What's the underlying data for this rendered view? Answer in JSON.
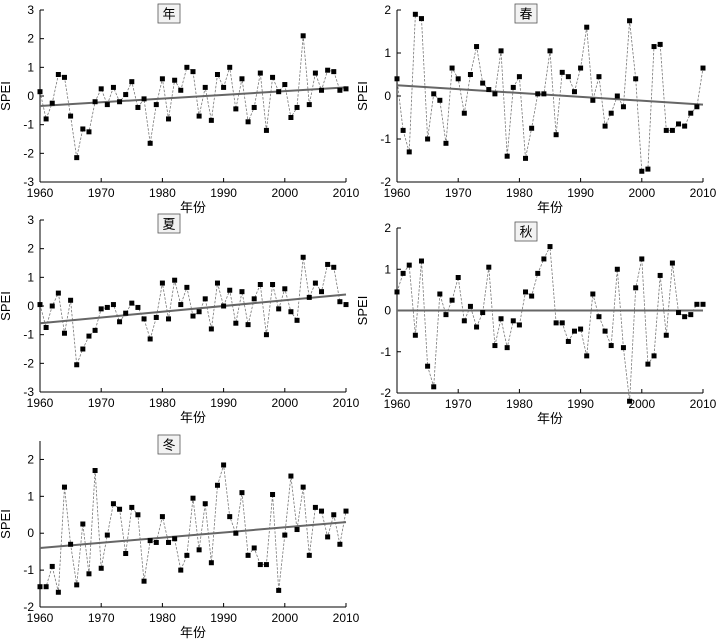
{
  "chart_data": [
    {
      "id": "annual",
      "type": "line",
      "title": "年",
      "xlabel": "年份",
      "ylabel": "SPEI",
      "xlim": [
        1960,
        2010
      ],
      "ylim": [
        -3,
        3
      ],
      "xticks": [
        1960,
        1970,
        1980,
        1990,
        2000,
        2010
      ],
      "yticks": [
        -3,
        -2,
        -1,
        0,
        1,
        2,
        3
      ],
      "x": [
        1960,
        1961,
        1962,
        1963,
        1964,
        1965,
        1966,
        1967,
        1968,
        1969,
        1970,
        1971,
        1972,
        1973,
        1974,
        1975,
        1976,
        1977,
        1978,
        1979,
        1980,
        1981,
        1982,
        1983,
        1984,
        1985,
        1986,
        1987,
        1988,
        1989,
        1990,
        1991,
        1992,
        1993,
        1994,
        1995,
        1996,
        1997,
        1998,
        1999,
        2000,
        2001,
        2002,
        2003,
        2004,
        2005,
        2006,
        2007,
        2008,
        2009,
        2010
      ],
      "values": [
        0.15,
        -0.8,
        -0.25,
        0.75,
        0.65,
        -0.7,
        -2.15,
        -1.15,
        -1.25,
        -0.2,
        0.25,
        -0.3,
        0.3,
        -0.2,
        0.05,
        0.5,
        -0.4,
        -0.1,
        -1.65,
        -0.3,
        0.6,
        -0.8,
        0.55,
        0.2,
        1.0,
        0.85,
        -0.7,
        0.3,
        -0.85,
        0.75,
        0.3,
        1.0,
        -0.45,
        0.6,
        -0.9,
        -0.4,
        0.8,
        -1.2,
        0.65,
        0.15,
        0.4,
        -0.75,
        -0.4,
        2.1,
        -0.3,
        0.8,
        0.2,
        0.9,
        0.85,
        0.2,
        0.25
      ],
      "trend": [
        -0.35,
        0.3
      ]
    },
    {
      "id": "spring",
      "type": "line",
      "title": "春",
      "xlabel": "年份",
      "ylabel": "SPEI",
      "xlim": [
        1960,
        2010
      ],
      "ylim": [
        -2,
        2
      ],
      "xticks": [
        1960,
        1970,
        1980,
        1990,
        2000,
        2010
      ],
      "yticks": [
        -2,
        -1,
        0,
        1,
        2
      ],
      "x": [
        1960,
        1961,
        1962,
        1963,
        1964,
        1965,
        1966,
        1967,
        1968,
        1969,
        1970,
        1971,
        1972,
        1973,
        1974,
        1975,
        1976,
        1977,
        1978,
        1979,
        1980,
        1981,
        1982,
        1983,
        1984,
        1985,
        1986,
        1987,
        1988,
        1989,
        1990,
        1991,
        1992,
        1993,
        1994,
        1995,
        1996,
        1997,
        1998,
        1999,
        2000,
        2001,
        2002,
        2003,
        2004,
        2005,
        2006,
        2007,
        2008,
        2009,
        2010
      ],
      "values": [
        0.4,
        -0.8,
        -1.3,
        1.9,
        1.8,
        -1.0,
        0.05,
        -0.1,
        -1.1,
        0.65,
        0.4,
        -0.4,
        0.5,
        1.15,
        0.3,
        0.15,
        0.05,
        1.05,
        -1.4,
        0.2,
        0.45,
        -1.45,
        -0.75,
        0.05,
        0.05,
        1.05,
        -0.9,
        0.55,
        0.45,
        0.1,
        0.65,
        1.6,
        -0.1,
        0.45,
        -0.7,
        -0.4,
        0.0,
        -0.25,
        1.75,
        0.4,
        -1.75,
        -1.7,
        1.15,
        1.2,
        -0.8,
        -0.8,
        -0.65,
        -0.7,
        -0.4,
        -0.25,
        0.65
      ],
      "trend": [
        0.25,
        -0.2
      ]
    },
    {
      "id": "summer",
      "type": "line",
      "title": "夏",
      "xlabel": "年份",
      "ylabel": "SPEI",
      "xlim": [
        1960,
        2010
      ],
      "ylim": [
        -3,
        3
      ],
      "xticks": [
        1960,
        1970,
        1980,
        1990,
        2000,
        2010
      ],
      "yticks": [
        -3,
        -2,
        -1,
        0,
        1,
        2,
        3
      ],
      "x": [
        1960,
        1961,
        1962,
        1963,
        1964,
        1965,
        1966,
        1967,
        1968,
        1969,
        1970,
        1971,
        1972,
        1973,
        1974,
        1975,
        1976,
        1977,
        1978,
        1979,
        1980,
        1981,
        1982,
        1983,
        1984,
        1985,
        1986,
        1987,
        1988,
        1989,
        1990,
        1991,
        1992,
        1993,
        1994,
        1995,
        1996,
        1997,
        1998,
        1999,
        2000,
        2001,
        2002,
        2003,
        2004,
        2005,
        2006,
        2007,
        2008,
        2009,
        2010
      ],
      "values": [
        0.05,
        -0.75,
        0.0,
        0.45,
        -0.95,
        0.2,
        -2.05,
        -1.5,
        -1.05,
        -0.85,
        -0.1,
        -0.05,
        0.05,
        -0.55,
        -0.25,
        0.1,
        -0.05,
        -0.45,
        -1.15,
        -0.4,
        0.8,
        -0.45,
        0.9,
        0.05,
        0.65,
        -0.35,
        -0.2,
        0.25,
        -0.8,
        0.8,
        0.0,
        0.55,
        -0.6,
        0.5,
        -0.65,
        0.25,
        0.75,
        -1.0,
        0.75,
        -0.1,
        0.6,
        -0.2,
        -0.5,
        1.7,
        0.3,
        0.8,
        0.5,
        1.45,
        1.35,
        0.15,
        0.05
      ],
      "trend": [
        -0.6,
        0.4
      ]
    },
    {
      "id": "autumn",
      "type": "line",
      "title": "秋",
      "xlabel": "年份",
      "ylabel": "SPEI",
      "xlim": [
        1960,
        2010
      ],
      "ylim": [
        -2,
        2
      ],
      "xticks": [
        1960,
        1970,
        1980,
        1990,
        2000,
        2010
      ],
      "yticks": [
        -2,
        -1,
        0,
        1,
        2
      ],
      "x": [
        1960,
        1961,
        1962,
        1963,
        1964,
        1965,
        1966,
        1967,
        1968,
        1969,
        1970,
        1971,
        1972,
        1973,
        1974,
        1975,
        1976,
        1977,
        1978,
        1979,
        1980,
        1981,
        1982,
        1983,
        1984,
        1985,
        1986,
        1987,
        1988,
        1989,
        1990,
        1991,
        1992,
        1993,
        1994,
        1995,
        1996,
        1997,
        1998,
        1999,
        2000,
        2001,
        2002,
        2003,
        2004,
        2005,
        2006,
        2007,
        2008,
        2009,
        2010
      ],
      "values": [
        0.45,
        0.9,
        1.1,
        -0.6,
        1.2,
        -1.35,
        -1.85,
        0.4,
        -0.1,
        0.25,
        0.8,
        -0.25,
        0.1,
        -0.4,
        -0.05,
        1.05,
        -0.85,
        -0.2,
        -0.9,
        -0.25,
        -0.35,
        0.45,
        0.35,
        0.9,
        1.25,
        1.55,
        -0.3,
        -0.3,
        -0.75,
        -0.5,
        -0.45,
        -1.1,
        0.4,
        -0.15,
        -0.5,
        -0.85,
        1.0,
        -0.9,
        -2.2,
        0.55,
        1.25,
        -1.3,
        -1.1,
        0.85,
        -0.6,
        1.15,
        -0.05,
        -0.15,
        -0.1,
        0.15,
        0.15
      ],
      "trend": [
        0.0,
        0.0
      ]
    },
    {
      "id": "winter",
      "type": "line",
      "title": "冬",
      "xlabel": "年份",
      "ylabel": "SPEI",
      "xlim": [
        1960,
        2010
      ],
      "ylim": [
        -2,
        2.5
      ],
      "xticks": [
        1960,
        1970,
        1980,
        1990,
        2000,
        2010
      ],
      "yticks": [
        -2,
        -1,
        0,
        1,
        2
      ],
      "x": [
        1960,
        1961,
        1962,
        1963,
        1964,
        1965,
        1966,
        1967,
        1968,
        1969,
        1970,
        1971,
        1972,
        1973,
        1974,
        1975,
        1976,
        1977,
        1978,
        1979,
        1980,
        1981,
        1982,
        1983,
        1984,
        1985,
        1986,
        1987,
        1988,
        1989,
        1990,
        1991,
        1992,
        1993,
        1994,
        1995,
        1996,
        1997,
        1998,
        1999,
        2000,
        2001,
        2002,
        2003,
        2004,
        2005,
        2006,
        2007,
        2008,
        2009,
        2010
      ],
      "values": [
        -1.45,
        -1.45,
        -0.9,
        -1.6,
        1.25,
        -0.3,
        -1.4,
        0.25,
        -1.1,
        1.7,
        -0.95,
        -0.05,
        0.8,
        0.65,
        -0.55,
        0.7,
        0.5,
        -1.3,
        -0.2,
        -0.25,
        0.45,
        -0.25,
        -0.15,
        -1.0,
        -0.6,
        0.95,
        -0.45,
        0.8,
        -0.8,
        1.3,
        1.85,
        0.45,
        0.0,
        1.1,
        -0.6,
        -0.4,
        -0.85,
        -0.85,
        1.05,
        -1.55,
        -0.05,
        1.55,
        0.1,
        1.25,
        -0.6,
        0.7,
        0.6,
        -0.1,
        0.5,
        -0.3,
        0.6
      ],
      "trend": [
        -0.4,
        0.3
      ]
    }
  ]
}
